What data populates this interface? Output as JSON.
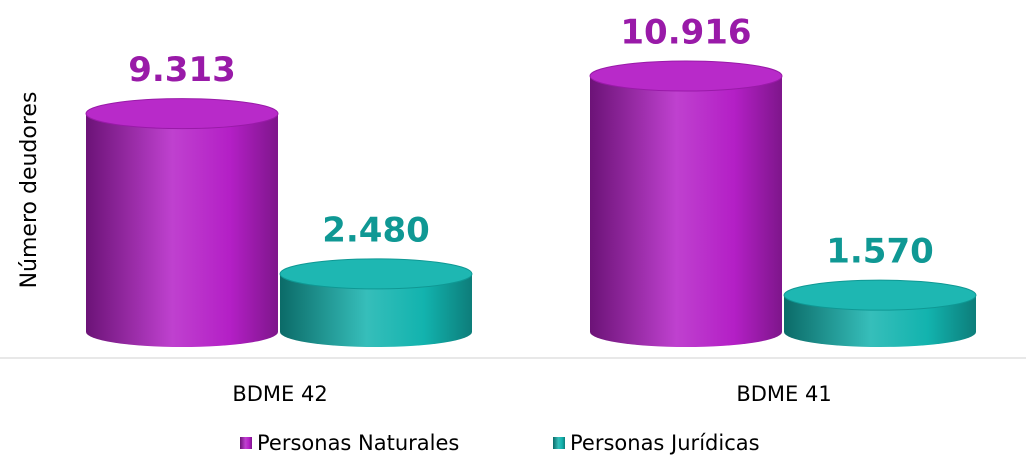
{
  "chart_data": {
    "type": "cylinder",
    "y_label": "Número deudores",
    "categories": [
      "BDME 42",
      "BDME 41"
    ],
    "series": [
      {
        "name": "Personas Naturales",
        "color": "#b41fc6",
        "values": [
          9313,
          10916
        ],
        "value_labels": [
          "9.313",
          "10.916"
        ]
      },
      {
        "name": "Personas Jurídicas",
        "color": "#12b3ae",
        "values": [
          2480,
          1570
        ],
        "value_labels": [
          "2.480",
          "1.570"
        ]
      }
    ]
  }
}
